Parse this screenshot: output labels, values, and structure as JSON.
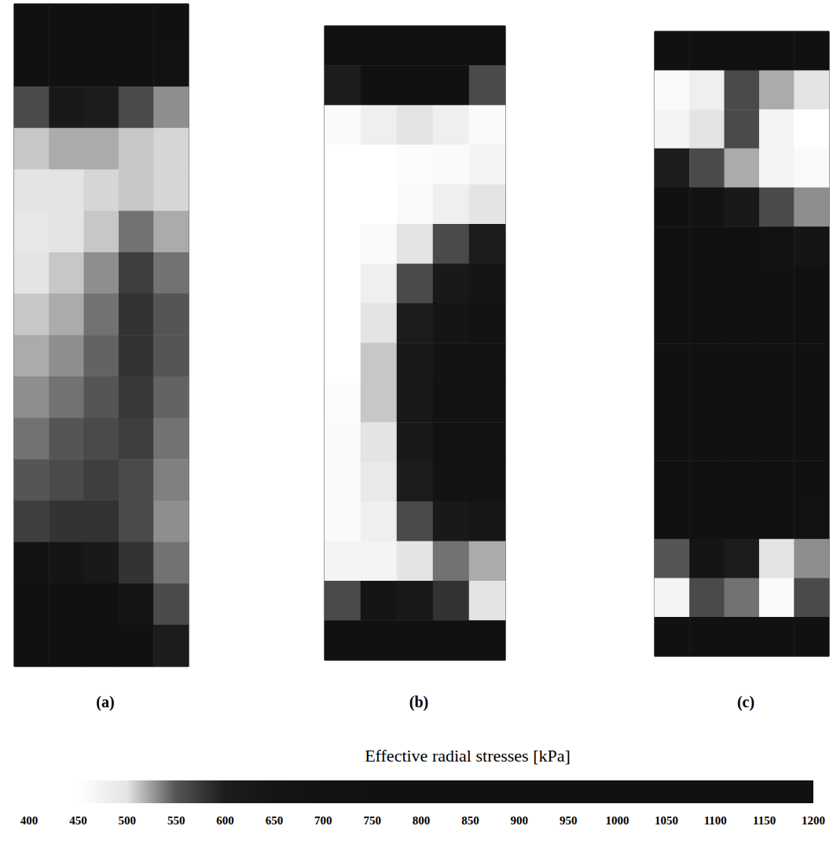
{
  "chart_data": {
    "type": "heatmap",
    "tick_labels": false,
    "panels": [
      {
        "label": "(a)",
        "values": [
          [
            900,
            950,
            950,
            900,
            850
          ],
          [
            800,
            850,
            850,
            800,
            700
          ],
          [
            560,
            620,
            600,
            560,
            530
          ],
          [
            510,
            520,
            520,
            510,
            505
          ],
          [
            500,
            500,
            505,
            510,
            505
          ],
          [
            495,
            500,
            510,
            540,
            520
          ],
          [
            500,
            510,
            530,
            570,
            540
          ],
          [
            510,
            520,
            540,
            580,
            550
          ],
          [
            520,
            530,
            545,
            580,
            550
          ],
          [
            530,
            540,
            550,
            575,
            545
          ],
          [
            540,
            550,
            560,
            570,
            540
          ],
          [
            550,
            560,
            570,
            560,
            535
          ],
          [
            570,
            580,
            580,
            560,
            530
          ],
          [
            700,
            650,
            620,
            580,
            540
          ],
          [
            950,
            900,
            800,
            650,
            560
          ],
          [
            1100,
            1050,
            950,
            800,
            600
          ]
        ]
      },
      {
        "label": "(b)",
        "values": [
          [
            900,
            950,
            950,
            950,
            900
          ],
          [
            600,
            800,
            850,
            750,
            560
          ],
          [
            460,
            480,
            500,
            480,
            460
          ],
          [
            450,
            450,
            455,
            460,
            470
          ],
          [
            450,
            450,
            460,
            480,
            500
          ],
          [
            450,
            460,
            500,
            560,
            600
          ],
          [
            450,
            480,
            560,
            620,
            650
          ],
          [
            450,
            500,
            600,
            650,
            680
          ],
          [
            450,
            510,
            620,
            680,
            700
          ],
          [
            455,
            510,
            630,
            700,
            720
          ],
          [
            460,
            500,
            620,
            700,
            720
          ],
          [
            460,
            490,
            600,
            680,
            700
          ],
          [
            460,
            480,
            560,
            620,
            640
          ],
          [
            470,
            470,
            500,
            540,
            520
          ],
          [
            560,
            650,
            620,
            580,
            500
          ],
          [
            900,
            1000,
            1000,
            950,
            850
          ]
        ]
      },
      {
        "label": "(c)",
        "values": [
          [
            900,
            950,
            950,
            950,
            900
          ],
          [
            460,
            480,
            560,
            520,
            500
          ],
          [
            470,
            500,
            560,
            470,
            450
          ],
          [
            600,
            560,
            520,
            470,
            460
          ],
          [
            800,
            700,
            620,
            560,
            530
          ],
          [
            1000,
            900,
            800,
            700,
            650
          ],
          [
            1100,
            1050,
            950,
            850,
            800
          ],
          [
            1150,
            1100,
            1050,
            950,
            900
          ],
          [
            1150,
            1150,
            1100,
            1000,
            950
          ],
          [
            1150,
            1150,
            1100,
            1050,
            1000
          ],
          [
            1100,
            1100,
            1100,
            1050,
            1000
          ],
          [
            1000,
            1050,
            1050,
            1000,
            950
          ],
          [
            800,
            900,
            950,
            800,
            700
          ],
          [
            550,
            650,
            600,
            500,
            530
          ],
          [
            470,
            560,
            540,
            460,
            560
          ],
          [
            800,
            900,
            900,
            850,
            800
          ]
        ]
      }
    ],
    "colorbar": {
      "title": "Effective radial stresses [kPa]",
      "range": [
        400,
        1200
      ],
      "ticks": [
        400,
        450,
        500,
        550,
        600,
        650,
        700,
        750,
        800,
        850,
        900,
        950,
        1000,
        1050,
        1100,
        1150,
        1200
      ]
    }
  }
}
